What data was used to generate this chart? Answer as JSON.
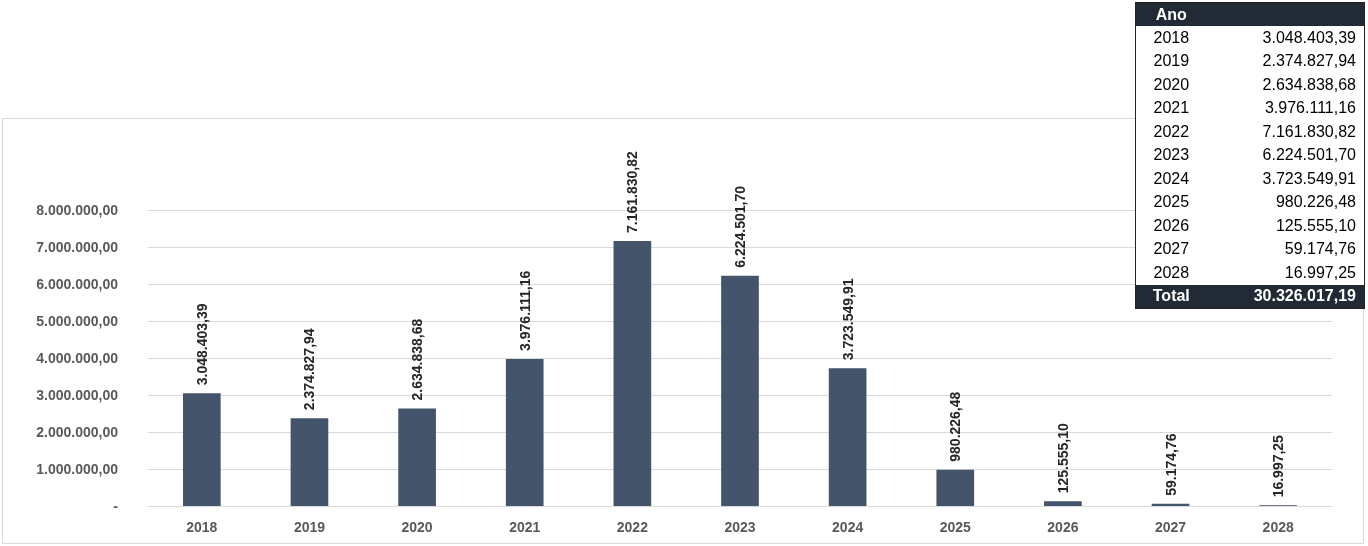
{
  "chart_data": {
    "type": "bar",
    "categories": [
      "2018",
      "2019",
      "2020",
      "2021",
      "2022",
      "2023",
      "2024",
      "2025",
      "2026",
      "2027",
      "2028"
    ],
    "values": [
      3048403.39,
      2374827.94,
      2634838.68,
      3976111.16,
      7161830.82,
      6224501.7,
      3723549.91,
      980226.48,
      125555.1,
      59174.76,
      16997.25
    ],
    "color": "#44546a",
    "ylim": [
      0,
      8000000
    ],
    "yticks": [
      {
        "value": 0,
        "label": "-"
      },
      {
        "value": 1000000,
        "label": "1.000.000,00"
      },
      {
        "value": 2000000,
        "label": "2.000.000,00"
      },
      {
        "value": 3000000,
        "label": "3.000.000,00"
      },
      {
        "value": 4000000,
        "label": "4.000.000,00"
      },
      {
        "value": 5000000,
        "label": "5.000.000,00"
      },
      {
        "value": 6000000,
        "label": "6.000.000,00"
      },
      {
        "value": 7000000,
        "label": "7.000.000,00"
      },
      {
        "value": 8000000,
        "label": "8.000.000,00"
      }
    ],
    "grid": "y",
    "value_labels": [
      "3.048.403,39",
      "2.374.827,94",
      "2.634.838,68",
      "3.976.111,16",
      "7.161.830,82",
      "6.224.501,70",
      "3.723.549,91",
      "980.226,48",
      "125.555,10",
      "59.174,76",
      "16.997,25"
    ],
    "annotations": [
      "Ano",
      "Total",
      "30.326.017,19"
    ]
  }
}
